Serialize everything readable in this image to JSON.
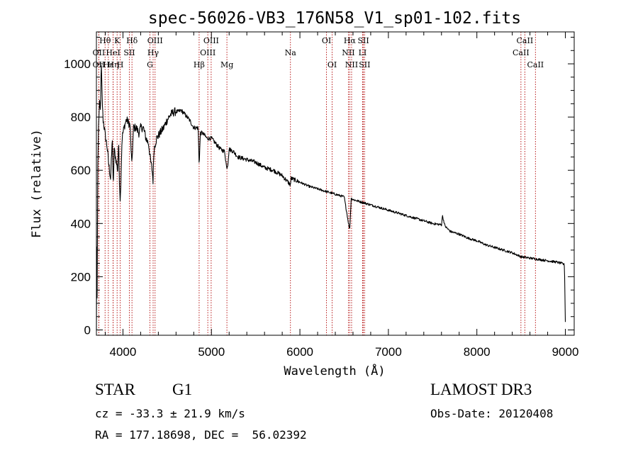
{
  "chart_data": {
    "type": "line",
    "title": "spec-56026-VB3_176N58_V1_sp01-102.fits",
    "xlabel": "Wavelength (Å)",
    "ylabel": "Flux (relative)",
    "xlim": [
      3700,
      9100
    ],
    "ylim": [
      -20,
      1120
    ],
    "xticks": [
      4000,
      5000,
      6000,
      7000,
      8000,
      9000
    ],
    "yticks": [
      0,
      200,
      400,
      600,
      800,
      1000
    ],
    "xtick_labels": [
      "4000",
      "5000",
      "6000",
      "7000",
      "8000",
      "9000"
    ],
    "ytick_labels": [
      "0",
      "200",
      "400",
      "600",
      "800",
      "1000"
    ],
    "grid": false,
    "series": [
      {
        "name": "spectrum",
        "color": "#000000",
        "anchors": [
          [
            3700,
            0
          ],
          [
            3703,
            360
          ],
          [
            3708,
            120
          ],
          [
            3715,
            600
          ],
          [
            3725,
            780
          ],
          [
            3735,
            850
          ],
          [
            3745,
            820
          ],
          [
            3755,
            1000
          ],
          [
            3765,
            870
          ],
          [
            3775,
            790
          ],
          [
            3785,
            770
          ],
          [
            3800,
            730
          ],
          [
            3820,
            690
          ],
          [
            3840,
            620
          ],
          [
            3860,
            570
          ],
          [
            3880,
            720
          ],
          [
            3890,
            520
          ],
          [
            3900,
            680
          ],
          [
            3920,
            640
          ],
          [
            3940,
            600
          ],
          [
            3950,
            710
          ],
          [
            3960,
            560
          ],
          [
            3970,
            480
          ],
          [
            3980,
            600
          ],
          [
            3990,
            720
          ],
          [
            4000,
            740
          ],
          [
            4020,
            770
          ],
          [
            4040,
            790
          ],
          [
            4060,
            780
          ],
          [
            4080,
            770
          ],
          [
            4100,
            620
          ],
          [
            4120,
            760
          ],
          [
            4150,
            760
          ],
          [
            4180,
            740
          ],
          [
            4200,
            760
          ],
          [
            4230,
            760
          ],
          [
            4260,
            720
          ],
          [
            4290,
            700
          ],
          [
            4310,
            640
          ],
          [
            4330,
            600
          ],
          [
            4340,
            560
          ],
          [
            4350,
            680
          ],
          [
            4380,
            720
          ],
          [
            4420,
            740
          ],
          [
            4460,
            760
          ],
          [
            4500,
            790
          ],
          [
            4540,
            810
          ],
          [
            4580,
            820
          ],
          [
            4620,
            820
          ],
          [
            4660,
            825
          ],
          [
            4700,
            810
          ],
          [
            4750,
            790
          ],
          [
            4800,
            760
          ],
          [
            4850,
            760
          ],
          [
            4861,
            620
          ],
          [
            4875,
            740
          ],
          [
            4900,
            740
          ],
          [
            4950,
            720
          ],
          [
            5000,
            720
          ],
          [
            5050,
            700
          ],
          [
            5100,
            680
          ],
          [
            5150,
            670
          ],
          [
            5172,
            610
          ],
          [
            5185,
            620
          ],
          [
            5200,
            680
          ],
          [
            5250,
            670
          ],
          [
            5300,
            650
          ],
          [
            5400,
            640
          ],
          [
            5500,
            630
          ],
          [
            5600,
            610
          ],
          [
            5700,
            600
          ],
          [
            5800,
            580
          ],
          [
            5893,
            545
          ],
          [
            5900,
            570
          ],
          [
            6000,
            555
          ],
          [
            6100,
            540
          ],
          [
            6200,
            530
          ],
          [
            6300,
            520
          ],
          [
            6400,
            510
          ],
          [
            6500,
            500
          ],
          [
            6562,
            375
          ],
          [
            6580,
            495
          ],
          [
            6600,
            490
          ],
          [
            6700,
            480
          ],
          [
            6800,
            470
          ],
          [
            6900,
            460
          ],
          [
            7000,
            450
          ],
          [
            7100,
            440
          ],
          [
            7200,
            430
          ],
          [
            7300,
            420
          ],
          [
            7400,
            410
          ],
          [
            7500,
            400
          ],
          [
            7600,
            395
          ],
          [
            7610,
            430
          ],
          [
            7640,
            390
          ],
          [
            7700,
            370
          ],
          [
            7800,
            360
          ],
          [
            7900,
            345
          ],
          [
            8000,
            335
          ],
          [
            8100,
            320
          ],
          [
            8200,
            310
          ],
          [
            8300,
            300
          ],
          [
            8400,
            290
          ],
          [
            8500,
            275
          ],
          [
            8600,
            270
          ],
          [
            8700,
            265
          ],
          [
            8800,
            260
          ],
          [
            8900,
            255
          ],
          [
            8960,
            250
          ],
          [
            8990,
            245
          ],
          [
            9000,
            30
          ]
        ]
      }
    ],
    "line_markers": [
      {
        "label": "Hθ",
        "x": 3798,
        "row": 1
      },
      {
        "label": "OII",
        "x": 3727,
        "row": 2
      },
      {
        "label": "OII",
        "x": 3727,
        "row": 3
      },
      {
        "label": "Hε",
        "x": 3835,
        "row": 3
      },
      {
        "label": "K",
        "x": 3934,
        "row": 1
      },
      {
        "label": "HeI",
        "x": 3889,
        "row": 2
      },
      {
        "label": "Hη",
        "x": 3889,
        "row": 3
      },
      {
        "label": "H",
        "x": 3969,
        "row": 3
      },
      {
        "label": "SII",
        "x": 4072,
        "row": 2
      },
      {
        "label": "Hδ",
        "x": 4102,
        "row": 1
      },
      {
        "label": "OIII",
        "x": 4363,
        "row": 1
      },
      {
        "label": "Hγ",
        "x": 4341,
        "row": 2
      },
      {
        "label": "G",
        "x": 4305,
        "row": 3
      },
      {
        "label": "Hβ",
        "x": 4861,
        "row": 3
      },
      {
        "label": "OIII",
        "x": 4997,
        "row": 1
      },
      {
        "label": "OIII",
        "x": 4959,
        "row": 2
      },
      {
        "label": "Mg",
        "x": 5175,
        "row": 3
      },
      {
        "label": "Na",
        "x": 5893,
        "row": 2
      },
      {
        "label": "OI",
        "x": 6300,
        "row": 1
      },
      {
        "label": "OI",
        "x": 6364,
        "row": 3
      },
      {
        "label": "Hα",
        "x": 6563,
        "row": 1
      },
      {
        "label": "NII",
        "x": 6548,
        "row": 2
      },
      {
        "label": "NII",
        "x": 6584,
        "row": 3
      },
      {
        "label": "SII",
        "x": 6717,
        "row": 1
      },
      {
        "label": "LI",
        "x": 6708,
        "row": 2
      },
      {
        "label": "SII",
        "x": 6731,
        "row": 3
      },
      {
        "label": "CaII",
        "x": 8542,
        "row": 1
      },
      {
        "label": "CaII",
        "x": 8498,
        "row": 2
      },
      {
        "label": "CaII",
        "x": 8662,
        "row": 3
      }
    ]
  },
  "info": {
    "object_class": "STAR",
    "subclass": "G1",
    "survey": "LAMOST DR3",
    "velocity": "cz = -33.3 ± 21.9 km/s",
    "obs_date": "Obs-Date: 20120408",
    "coordinates": "RA = 177.18698, DEC =  56.02392"
  }
}
